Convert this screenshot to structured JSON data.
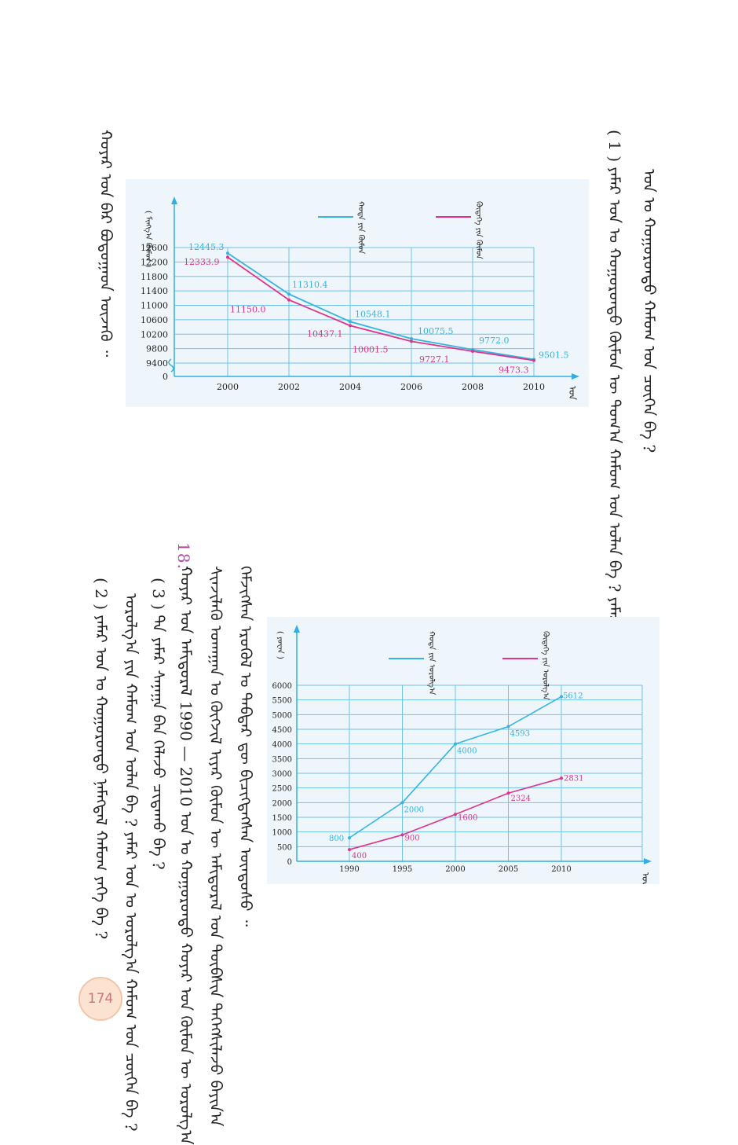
{
  "page": {
    "number": "174"
  },
  "text": {
    "c1": "ᠬᠣᠶᠠᠷ ᠤᠨ ᠪᠠᠷ ᠪᠣᠳᠣᠭᠠᠳ ᠦᠵᠡᠬᠦ ᠃",
    "c2": "( 1 ) ᠶᠠᠮᠠᠷ ᠣᠨ ᠤ ᠬᠣᠭᠣᠷᠣᠨᠳᠣ ᠬᠦᠮᠦᠨ ᠦ ᠲᠣᠭ᠎ᠠ ᠬᠠᠮᠤᠭ ᠤᠨ ᠣᠯᠠᠨ ᠪᠡ ? ᠶᠠᠮᠠᠷ",
    "c3": "ᠣᠨ ᠤ ᠬᠣᠭᠣᠷᠣᠨᠳᠣ ᠬᠠᠮᠤᠭ ᠤᠨ ᠴᠦᠭᠡᠨ ᠪᠡ ?",
    "q18": "18.",
    "c4": "ᠰᠢᠨᠵᠢᠯᠡᠬᠦ ᠤᠬᠠᠭᠠᠨ ᠤ ᠬᠥᠭᠵᠢᠯ ᠢᠶᠡᠷ ᠬᠦᠮᠦᠨ ᠦ ᠠᠮᠢᠳᠤᠷᠠᠯ ᠤᠨ ᠲᠦᠪᠰᠢᠨ ᠳᠡᠭᠡᠭᠰᠢᠯᠡᠵᠦ ᠪᠠᠶᠢᠨ᠎ᠠ",
    "c5": "ᠬᠡᠮᠵᠢᠭᠰᠡᠨ ᠡᠷᠦᠭᠦᠯ ᠤ ᠳᠡᠪᠲᠡᠷ ᠳᠦ ᠪᠢᠴᠢᠭᠳᠡᠭᠰᠡᠨ ᠦᠨᠳᠦᠰᠦ ᠃",
    "c6": "( 3 ) ᠲᠠ ᠶᠠᠮᠠᠷ ᠰᠠᠨᠠᠭᠠ ᠪᠠᠨ ᠬᠡᠯᠡᠵᠦ ᠴᠢᠳᠠᠬᠤ ᠪᠡ ?",
    "c7": "ᠬᠣᠶᠠᠷ ᠤᠨ ᠠᠮᠢᠳᠤᠷᠠᠯ 1990 — 2010 ᠣᠨ ᠤ ᠬᠣᠭᠣᠷᠣᠨᠳᠣ ᠬᠣᠶᠠᠷ ᠤᠨ ᠬᠦᠮᠦᠨ ᠦ ᠣᠷᠣᠯᠭ᠎ᠠ",
    "c8": "ᠣᠷᠣᠯᠭ᠎ᠠ ᠶᠢᠨ ᠬᠠᠮᠤᠭ ᠤᠨ ᠣᠯᠠᠨ ᠪᠡ ? ᠶᠠᠮᠠᠷ ᠣᠨ ᠤ ᠣᠷᠣᠯᠭ᠎ᠠ ᠬᠠᠮᠤᠭ ᠤᠨ ᠴᠦᠭᠡᠨ ᠪᠡ ?",
    "c9": "( 2 ) ᠶᠠᠮᠠᠷ ᠣᠨ ᠤ ᠬᠣᠭᠣᠷᠣᠨᠳᠣ ᠨᠡᠮᠡᠭᠳᠡᠯ ᠬᠠᠮᠤᠭ ᠶᠡᠬᠡ ᠪᠡ ?"
  },
  "colors": {
    "cyan": "#33b5e0",
    "magenta": "#e0338a",
    "grid": "#6fc3ea",
    "axis": "#33aee0"
  },
  "chart_data": [
    {
      "type": "line",
      "x": [
        "2000",
        "2002",
        "2004",
        "2006",
        "2008",
        "2010"
      ],
      "ylim": [
        0,
        12600
      ],
      "yticks": [
        "0",
        "9400",
        "9800",
        "10200",
        "10600",
        "11000",
        "11400",
        "11800",
        "12200",
        "12600"
      ],
      "xlabel": "ᠣᠨ",
      "ylabel": "( ᠮᠢᠩᠭ᠎ᠠ ᠬᠦᠮᠦᠨ )",
      "series": [
        {
          "name": "ᠬᠣᠳᠠ ᠶᠢᠨ ᠬᠦᠮᠦᠨ",
          "color": "#33b5e0",
          "values": [
            12445.3,
            11310.4,
            10548.1,
            10075.5,
            9772.0,
            9501.5
          ],
          "labels": [
            "12445.3",
            "11310.4",
            "10548.1",
            "10075.5",
            "9772.0",
            "9501.5"
          ]
        },
        {
          "name": "ᠬᠥᠳᠡᠭᠡ ᠶᠢᠨ ᠬᠦᠮᠦᠨ",
          "color": "#e0338a",
          "values": [
            12333.9,
            11150.0,
            10437.1,
            10001.5,
            9727.1,
            9473.3
          ],
          "labels": [
            "12333.9",
            "11150.0",
            "10437.1",
            "10001.5",
            "9727.1",
            "9473.3"
          ]
        }
      ]
    },
    {
      "type": "line",
      "x": [
        "1990",
        "1995",
        "2000",
        "2005",
        "2010"
      ],
      "ylim": [
        0,
        6000
      ],
      "yticks": [
        "0",
        "500",
        "1000",
        "1500",
        "2000",
        "2500",
        "3000",
        "3500",
        "4000",
        "4500",
        "5000",
        "5500",
        "6000"
      ],
      "xlabel": "ᠣᠨ",
      "ylabel": "( ᠶᠤᠸᠠᠨ )",
      "series": [
        {
          "name": "ᠬᠣᠳᠠ ᠶᠢᠨ ᠣᠷᠣᠯᠭ᠎ᠠ",
          "color": "#33b5e0",
          "values": [
            800,
            2000,
            4000,
            4593,
            5612
          ],
          "labels": [
            "800",
            "2000",
            "4000",
            "4593",
            "5612"
          ]
        },
        {
          "name": "ᠬᠥᠳᠡᠭᠡ ᠶᠢᠨ ᠣᠷᠣᠯᠭ᠎ᠠ",
          "color": "#e0338a",
          "values": [
            400,
            900,
            1600,
            2324,
            2831
          ],
          "labels": [
            "400",
            "900",
            "1600",
            "2324",
            "2831"
          ]
        }
      ]
    }
  ]
}
